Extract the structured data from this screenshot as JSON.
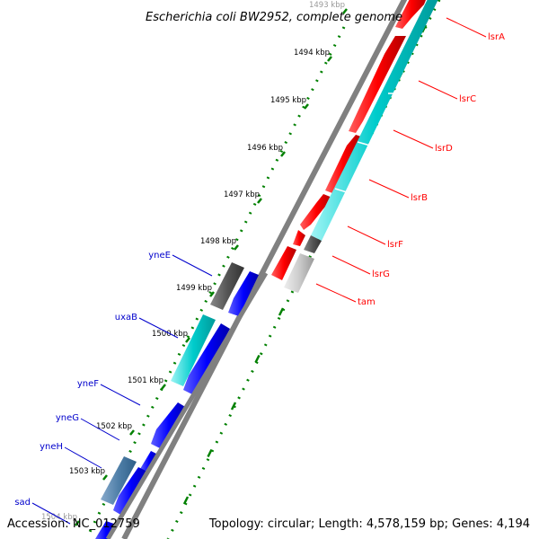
{
  "title": "Escherichia coli BW2952, complete genome",
  "footer": {
    "accession": "Accession: NC_012759",
    "summary": "Topology: circular; Length: 4,578,159 bp; Genes: 4,194"
  },
  "ticks": [
    {
      "kbp": 1493,
      "label": "1493 kbp"
    },
    {
      "kbp": 1494,
      "label": "1494 kbp"
    },
    {
      "kbp": 1495,
      "label": "1495 kbp"
    },
    {
      "kbp": 1496,
      "label": "1496 kbp"
    },
    {
      "kbp": 1497,
      "label": "1497 kbp"
    },
    {
      "kbp": 1498,
      "label": "1498 kbp"
    },
    {
      "kbp": 1499,
      "label": "1499 kbp"
    },
    {
      "kbp": 1500,
      "label": "1500 kbp"
    },
    {
      "kbp": 1501,
      "label": "1501 kbp"
    },
    {
      "kbp": 1502,
      "label": "1502 kbp"
    },
    {
      "kbp": 1503,
      "label": "1503 kbp"
    },
    {
      "kbp": 1504,
      "label": "1504 kbp"
    }
  ],
  "genes_right": [
    {
      "name": "lsrA",
      "color": "#ff0000"
    },
    {
      "name": "lsrC",
      "color": "#ff0000"
    },
    {
      "name": "lsrD",
      "color": "#ff0000"
    },
    {
      "name": "lsrB",
      "color": "#ff0000"
    },
    {
      "name": "lsrF",
      "color": "#ff0000"
    },
    {
      "name": "lsrG",
      "color": "#ff0000"
    },
    {
      "name": "tam",
      "color": "#ff0000"
    }
  ],
  "genes_left": [
    {
      "name": "yneE",
      "color": "#0000cc"
    },
    {
      "name": "uxaB",
      "color": "#0000cc"
    },
    {
      "name": "yneF",
      "color": "#0000cc"
    },
    {
      "name": "yneG",
      "color": "#0000cc"
    },
    {
      "name": "yneH",
      "color": "#0000cc"
    },
    {
      "name": "sad",
      "color": "#0000cc"
    }
  ],
  "colors": {
    "forward_cds": "#ff0000",
    "reverse_cds": "#0000ff",
    "rna": "#00cccc",
    "pseudo": "#555555",
    "other": "#cccccc",
    "backbone": "#808080",
    "ticks": "#008000"
  }
}
